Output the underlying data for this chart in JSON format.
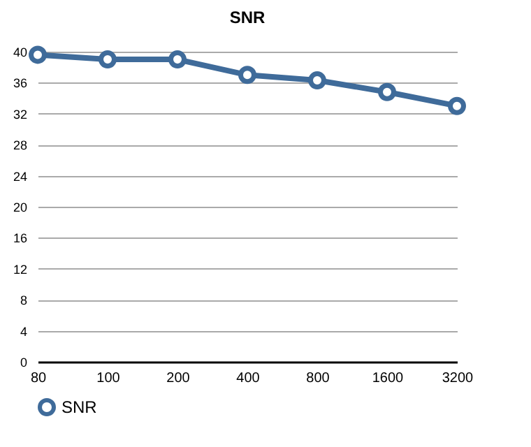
{
  "chart_data": {
    "type": "line",
    "title": "SNR",
    "categories": [
      "80",
      "100",
      "200",
      "400",
      "800",
      "1600",
      "3200"
    ],
    "series": [
      {
        "name": "SNR",
        "color": "#3f6b9a",
        "values": [
          39.6,
          39.0,
          39.0,
          37.0,
          36.3,
          34.8,
          33.0
        ]
      }
    ],
    "ylim": [
      0,
      40
    ],
    "yticks": [
      0,
      4,
      8,
      12,
      16,
      20,
      24,
      28,
      32,
      36,
      40
    ],
    "grid": "y",
    "legend": "bottom",
    "marker": "circle",
    "line_style": "solid"
  }
}
